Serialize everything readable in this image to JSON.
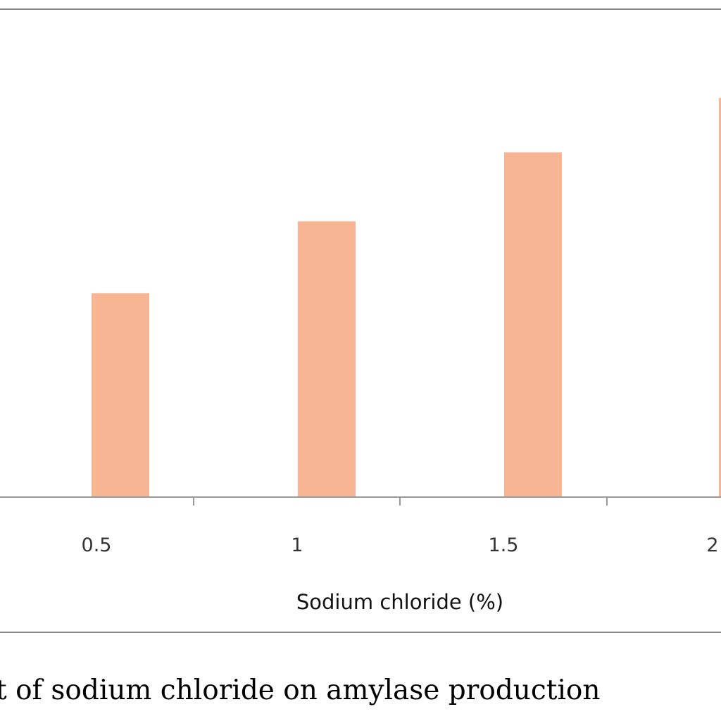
{
  "caption": "t of sodium chloride on amylase production",
  "chart_data": {
    "type": "bar",
    "title": "",
    "xlabel": "Sodium chloride (%)",
    "ylabel": "",
    "categories": [
      "0.5",
      "1",
      "1.5",
      "2"
    ],
    "values": [
      281,
      380,
      475,
      550
    ],
    "ylim": [
      0,
      650
    ],
    "grid": false,
    "legend": "none",
    "bar_color": "#f7b593",
    "axis_color": "#9a9a9a"
  }
}
